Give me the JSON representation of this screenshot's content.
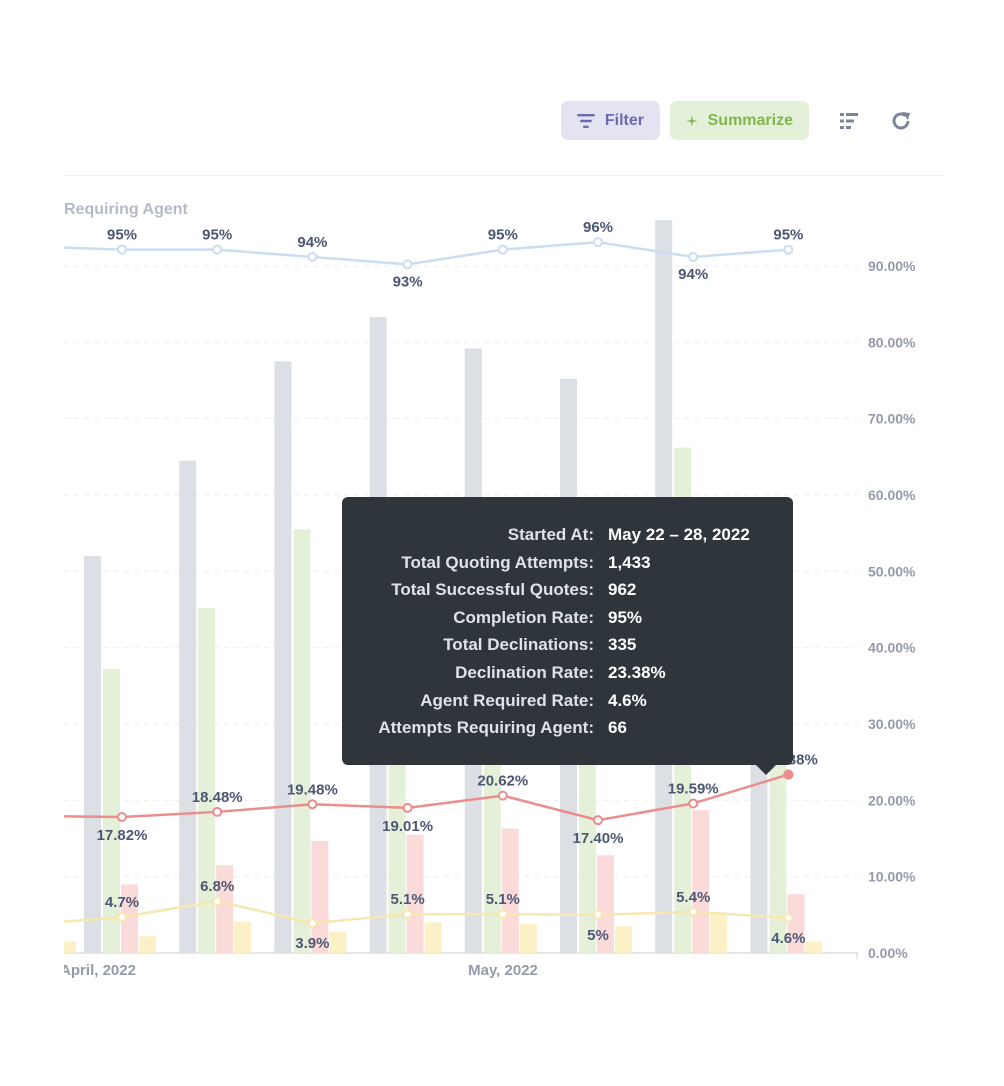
{
  "toolbar": {
    "filter_label": "Filter",
    "summarize_label": "Summarize",
    "filter_icon": "filter-icon",
    "summarize_icon": "sparkle-icon",
    "view_icon": "list-view-icon",
    "refresh_icon": "refresh-icon",
    "colors": {
      "filter": "#6e6ab1",
      "summarize": "#7fb54a"
    }
  },
  "tooltip": {
    "rows": [
      {
        "label": "Started At:",
        "value": "May 22 – 28, 2022"
      },
      {
        "label": "Total Quoting Attempts:",
        "value": "1,433"
      },
      {
        "label": "Total Successful Quotes:",
        "value": "962"
      },
      {
        "label": "Completion Rate:",
        "value": "95%"
      },
      {
        "label": "Total Declinations:",
        "value": "335"
      },
      {
        "label": "Declination Rate:",
        "value": "23.38%"
      },
      {
        "label": "Agent Required Rate:",
        "value": "4.6%"
      },
      {
        "label": "Attempts Requiring Agent:",
        "value": "66"
      }
    ]
  },
  "chart_data": {
    "type": "bar",
    "legend_partial_label": "Requiring Agent",
    "x_tick_labels": [
      "​April, 2022",
      "May, 2022"
    ],
    "y_right": {
      "ticks": [
        "0.00%",
        "10.00%",
        "20.00%",
        "30.00%",
        "40.00%",
        "50.00%",
        "60.00%",
        "70.00%",
        "80.00%",
        "90.00%"
      ],
      "ylim": [
        0,
        95
      ]
    },
    "grid": true,
    "colors": {
      "attempts": "#dcdfe3",
      "successful": "#e5f0d8",
      "declinations": "#fbdada",
      "agent": "#fcf0c6",
      "completion_line": "#c9def2",
      "declination_line": "#e98d8d",
      "agent_line": "#f8e7b0",
      "label": "#4c5773",
      "axis": "#949aab"
    },
    "weeks": [
      "w1",
      "w2",
      "w3",
      "w4",
      "w5",
      "w6",
      "w7",
      "w8"
    ],
    "series": [
      {
        "name": "Total Quoting Attempts",
        "values": [
          52,
          64.5,
          77.5,
          83.3,
          79.2,
          75.2,
          96,
          25
        ]
      },
      {
        "name": "Total Successful Quotes",
        "values": [
          37.2,
          45.2,
          55.5,
          25,
          25,
          25,
          66.2,
          25
        ]
      },
      {
        "name": "Total Declinations",
        "values": [
          9,
          11.5,
          14.7,
          15.5,
          16.3,
          12.8,
          18.7,
          7.7
        ]
      },
      {
        "name": "Attempts Requiring Agent",
        "values": [
          2.2,
          4.1,
          2.8,
          4,
          3.8,
          3.5,
          5.2,
          1.5
        ]
      }
    ],
    "completion_rate": {
      "values": [
        95,
        95,
        94,
        93,
        95,
        96,
        94,
        95
      ],
      "labels": [
        "95%",
        "95%",
        "94%",
        "93%",
        "95%",
        "96%",
        "94%",
        "95%"
      ]
    },
    "declination_rate": {
      "values": [
        17.82,
        18.48,
        19.48,
        19.01,
        20.62,
        17.4,
        19.59,
        23.38
      ],
      "labels": [
        "17.82%",
        "18.48%",
        "19.48%",
        "19.01%",
        "20.62%",
        "17.40%",
        "19.59%",
        "23.38%"
      ]
    },
    "agent_rate": {
      "values": [
        4.7,
        6.8,
        3.9,
        5.1,
        5.1,
        5,
        5.4,
        4.6
      ],
      "labels": [
        "4.7%",
        "6.8%",
        "3.9%",
        "5.1%",
        "5.1%",
        "5%",
        "5.4%",
        "4.6%"
      ]
    }
  }
}
